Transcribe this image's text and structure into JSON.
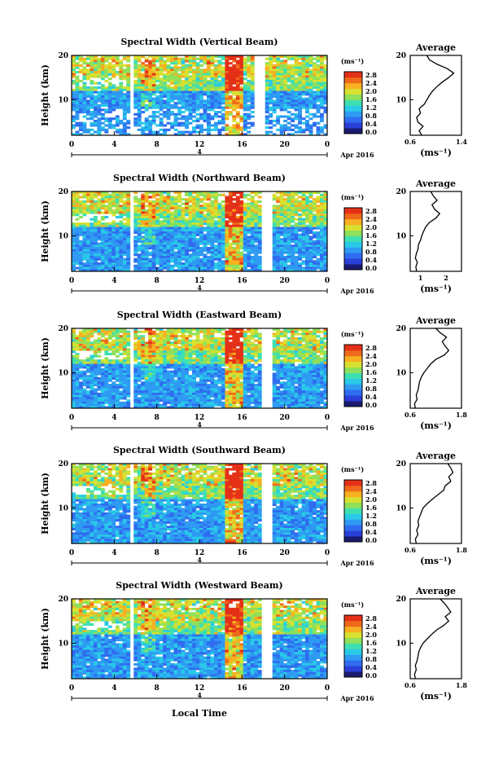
{
  "figure": {
    "xlabel": "Local Time",
    "date_label": "Apr 2016",
    "day_label": "4",
    "colorbar": {
      "unit": "(ms⁻¹)",
      "ticks": [
        "0.0",
        "0.4",
        "0.8",
        "1.2",
        "1.6",
        "2.0",
        "2.4",
        "2.8"
      ],
      "colors": [
        "#1a1a6e",
        "#2a3fd6",
        "#2f6cf0",
        "#2e9af2",
        "#29c9e8",
        "#3ee0b0",
        "#8fe05a",
        "#d8e030",
        "#f7b020",
        "#ef6a1a",
        "#e53018"
      ]
    },
    "average_title": "Average",
    "average_xlabel": "(ms⁻¹)"
  },
  "chart_data": [
    {
      "type": "heatmap",
      "title": "Spectral Width (Vertical Beam)",
      "ylabel": "Height (km)",
      "x_ticks": [
        "0",
        "4",
        "8",
        "12",
        "16",
        "20",
        "0"
      ],
      "xlim": [
        0,
        24
      ],
      "ylim": [
        2,
        20
      ],
      "y_ticks": [
        "10",
        "20"
      ],
      "gaps_hours": [
        [
          5.4,
          5.9
        ],
        [
          17.3,
          18.2
        ]
      ],
      "high_width_band_hours": [
        14.5,
        16.0
      ],
      "average_profile": {
        "xlim": [
          0.6,
          1.4
        ],
        "x_ticks": [
          "0.6",
          "1.4"
        ],
        "height_km": [
          2,
          3,
          4,
          5,
          6,
          7,
          8,
          9,
          10,
          11,
          12,
          13,
          14,
          15,
          16,
          17,
          18,
          19,
          20
        ],
        "width": [
          0.78,
          0.74,
          0.8,
          0.72,
          0.7,
          0.76,
          0.74,
          0.82,
          0.86,
          0.9,
          0.95,
          1.02,
          1.1,
          1.2,
          1.28,
          1.18,
          1.02,
          0.9,
          0.86
        ]
      }
    },
    {
      "type": "heatmap",
      "title": "Spectral Width (Northward Beam)",
      "ylabel": "Height (km)",
      "x_ticks": [
        "0",
        "4",
        "8",
        "12",
        "16",
        "20",
        "0"
      ],
      "xlim": [
        0,
        24
      ],
      "ylim": [
        2,
        20
      ],
      "y_ticks": [
        "10",
        "20"
      ],
      "gaps_hours": [
        [
          5.4,
          5.9
        ],
        [
          18.0,
          18.8
        ]
      ],
      "high_width_band_hours": [
        14.5,
        16.0
      ],
      "average_profile": {
        "xlim": [
          0.6,
          2.6
        ],
        "x_ticks": [
          "1",
          "2"
        ],
        "height_km": [
          2,
          3,
          4,
          5,
          6,
          7,
          8,
          9,
          10,
          11,
          12,
          13,
          14,
          15,
          16,
          17,
          18,
          19,
          20
        ],
        "width": [
          0.85,
          0.82,
          0.88,
          0.8,
          0.84,
          0.9,
          0.92,
          1.0,
          1.05,
          1.12,
          1.2,
          1.35,
          1.6,
          1.75,
          1.55,
          1.45,
          1.65,
          1.5,
          1.4
        ]
      }
    },
    {
      "type": "heatmap",
      "title": "Spectral Width (Eastward Beam)",
      "ylabel": "Height (km)",
      "x_ticks": [
        "0",
        "4",
        "8",
        "12",
        "16",
        "20",
        "0"
      ],
      "xlim": [
        0,
        24
      ],
      "ylim": [
        2,
        20
      ],
      "y_ticks": [
        "10",
        "20"
      ],
      "gaps_hours": [
        [
          5.4,
          5.9
        ],
        [
          18.0,
          18.8
        ]
      ],
      "high_width_band_hours": [
        14.5,
        16.0
      ],
      "average_profile": {
        "xlim": [
          0.6,
          1.8
        ],
        "x_ticks": [
          "0.6",
          "1.8"
        ],
        "height_km": [
          2,
          3,
          4,
          5,
          6,
          7,
          8,
          9,
          10,
          11,
          12,
          13,
          14,
          15,
          16,
          17,
          18,
          19,
          20
        ],
        "width": [
          0.72,
          0.7,
          0.76,
          0.74,
          0.78,
          0.8,
          0.82,
          0.86,
          0.92,
          1.0,
          1.08,
          1.2,
          1.4,
          1.5,
          1.42,
          1.35,
          1.45,
          1.3,
          1.2
        ]
      }
    },
    {
      "type": "heatmap",
      "title": "Spectral Width (Southward Beam)",
      "ylabel": "Height (km)",
      "x_ticks": [
        "0",
        "4",
        "8",
        "12",
        "16",
        "20",
        "0"
      ],
      "xlim": [
        0,
        24
      ],
      "ylim": [
        2,
        20
      ],
      "y_ticks": [
        "10",
        "20"
      ],
      "gaps_hours": [
        [
          5.4,
          5.9
        ],
        [
          18.0,
          18.8
        ]
      ],
      "high_width_band_hours": [
        14.5,
        16.0
      ],
      "average_profile": {
        "xlim": [
          0.6,
          1.8
        ],
        "x_ticks": [
          "0.6",
          "1.8"
        ],
        "height_km": [
          2,
          3,
          4,
          5,
          6,
          7,
          8,
          9,
          10,
          11,
          12,
          13,
          14,
          15,
          16,
          17,
          18,
          19,
          20
        ],
        "width": [
          0.74,
          0.72,
          0.78,
          0.75,
          0.8,
          0.78,
          0.82,
          0.86,
          0.9,
          1.0,
          1.12,
          1.25,
          1.38,
          1.42,
          1.55,
          1.5,
          1.6,
          1.55,
          1.48
        ]
      }
    },
    {
      "type": "heatmap",
      "title": "Spectral Width (Westward Beam)",
      "ylabel": "Height (km)",
      "x_ticks": [
        "0",
        "4",
        "8",
        "12",
        "16",
        "20",
        "0"
      ],
      "xlim": [
        0,
        24
      ],
      "ylim": [
        2,
        20
      ],
      "y_ticks": [
        "10",
        "20"
      ],
      "gaps_hours": [
        [
          5.4,
          5.9
        ],
        [
          18.0,
          18.8
        ]
      ],
      "high_width_band_hours": [
        14.5,
        16.0
      ],
      "average_profile": {
        "xlim": [
          0.6,
          1.8
        ],
        "x_ticks": [
          "0.6",
          "1.8"
        ],
        "height_km": [
          2,
          3,
          4,
          5,
          6,
          7,
          8,
          9,
          10,
          11,
          12,
          13,
          14,
          15,
          16,
          17,
          18,
          19,
          20
        ],
        "width": [
          0.72,
          0.7,
          0.74,
          0.72,
          0.76,
          0.78,
          0.8,
          0.84,
          0.9,
          1.0,
          1.1,
          1.22,
          1.38,
          1.5,
          1.42,
          1.55,
          1.48,
          1.4,
          1.3
        ]
      }
    }
  ]
}
